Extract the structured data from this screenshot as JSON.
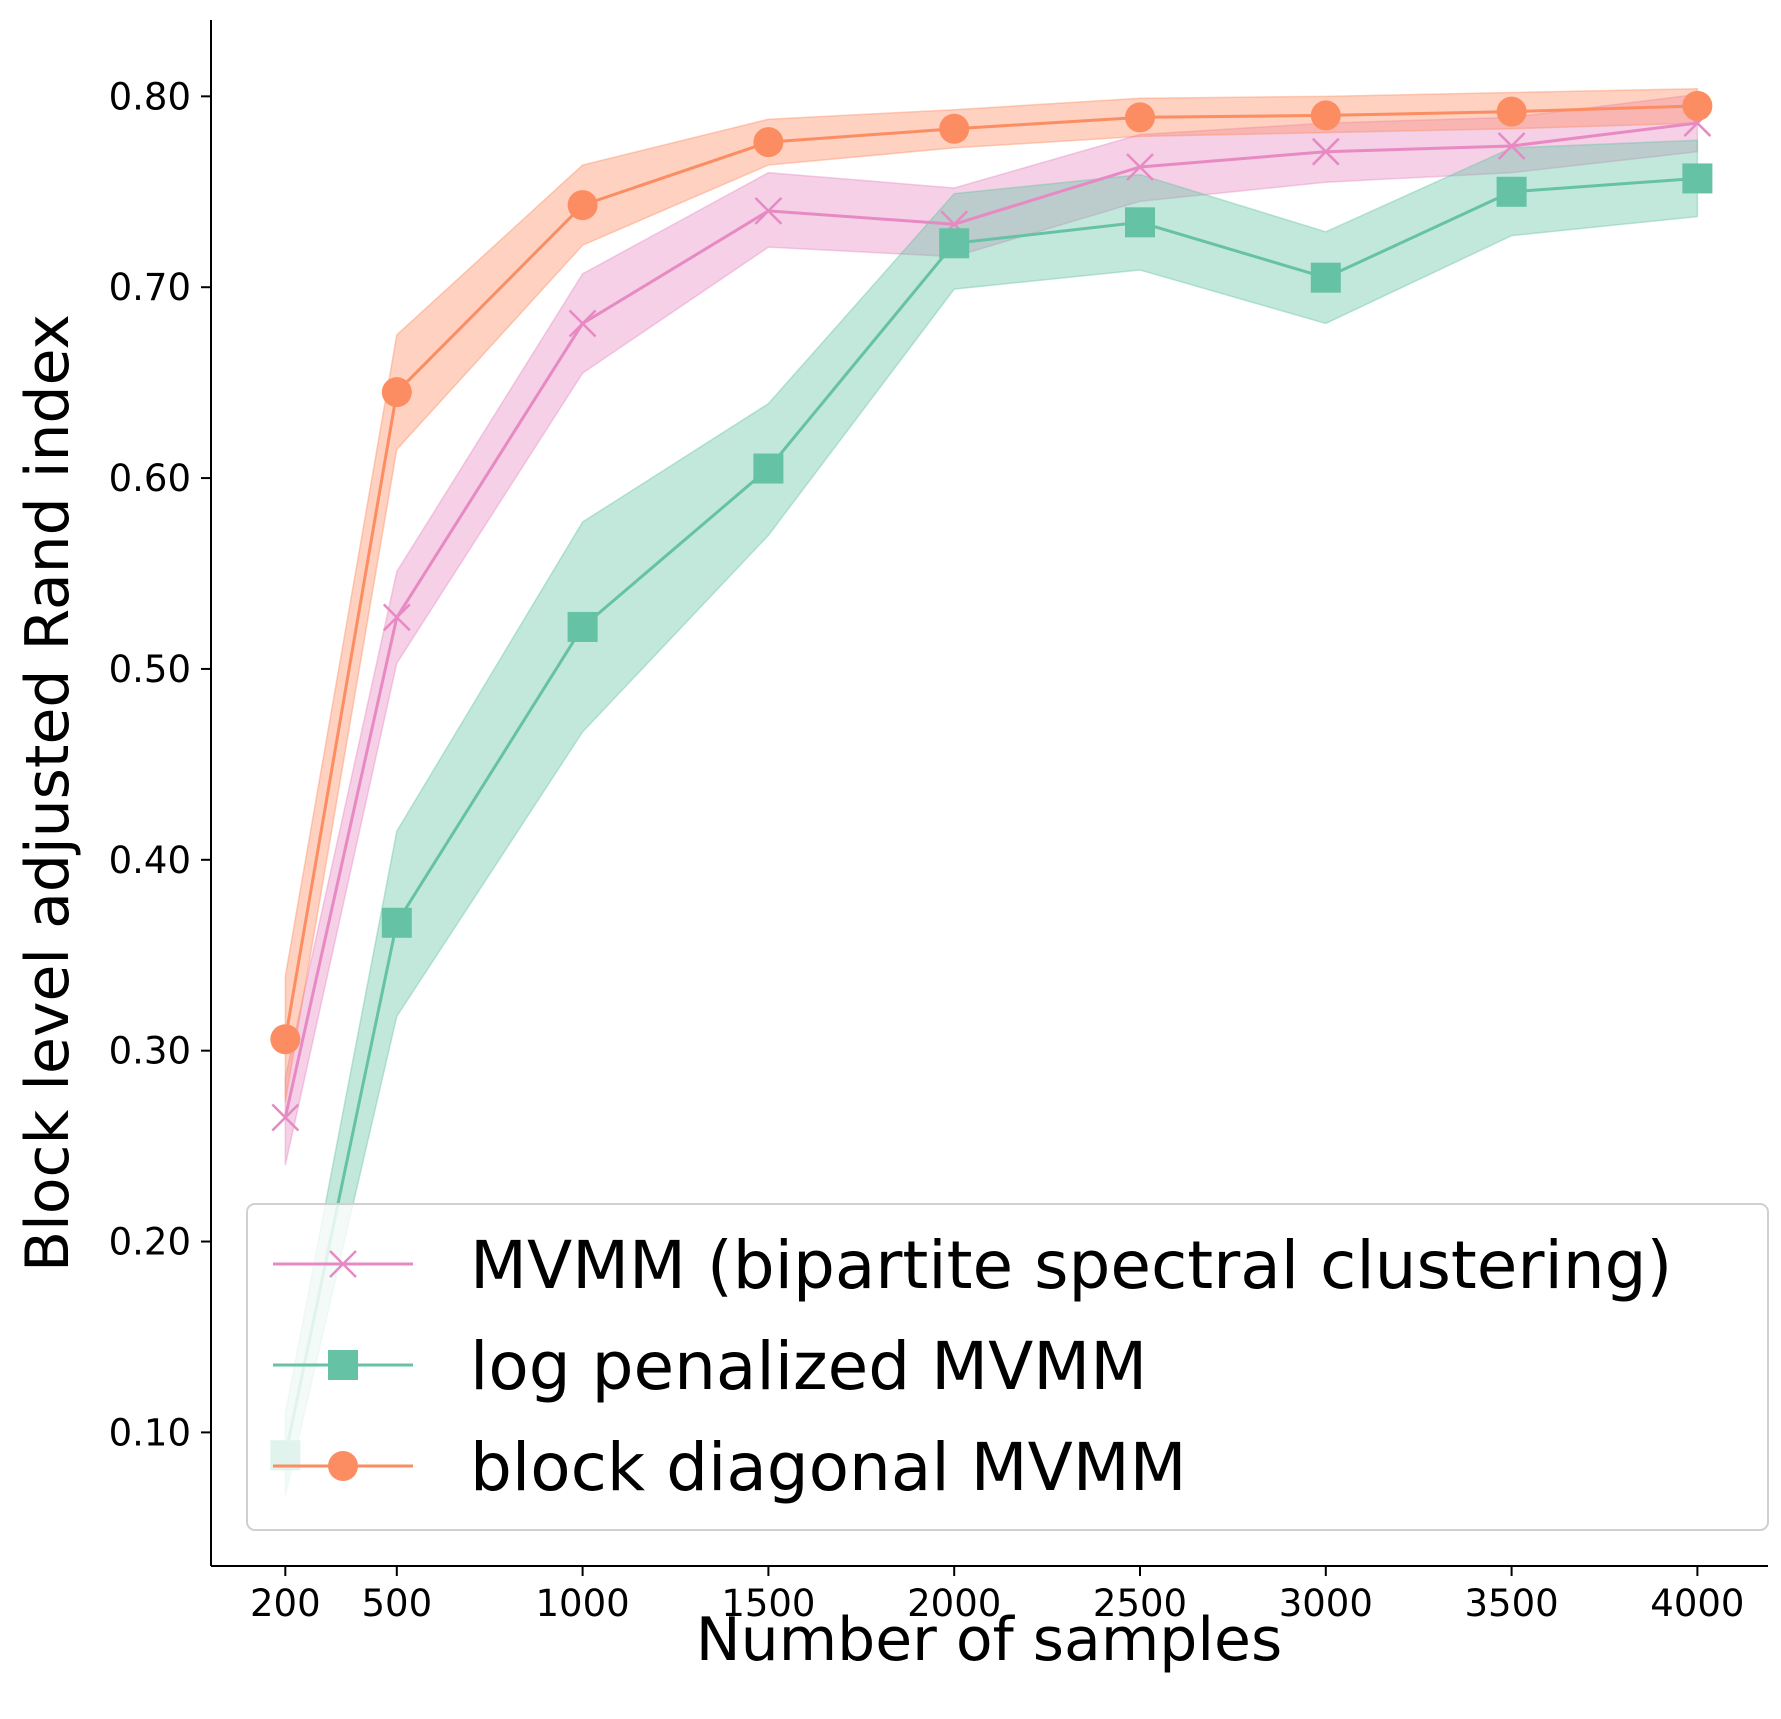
{
  "chart_data": {
    "type": "line",
    "title": "",
    "xlabel": "Number of samples",
    "ylabel": "Block level adjusted Rand index",
    "x": [
      200,
      500,
      1000,
      1500,
      2000,
      2500,
      3000,
      3500,
      4000
    ],
    "xticks": [
      200,
      500,
      1000,
      1500,
      2000,
      2500,
      3000,
      3500,
      4000
    ],
    "xtick_labels": [
      "200",
      "500",
      "1000",
      "1500",
      "2000",
      "2500",
      "3000",
      "3500",
      "4000"
    ],
    "yticks": [
      0.1,
      0.2,
      0.3,
      0.4,
      0.5,
      0.6,
      0.7,
      0.8
    ],
    "ytick_labels": [
      "0.10",
      "0.20",
      "0.30",
      "0.40",
      "0.50",
      "0.60",
      "0.70",
      "0.80"
    ],
    "xlim": [
      0,
      4190
    ],
    "ylim": [
      0.03,
      0.84
    ],
    "grid": false,
    "legend_position": "lower-right",
    "series": [
      {
        "name": "MVMM (bipartite spectral clustering)",
        "color": "#e78ac3",
        "marker": "x",
        "values": [
          0.265,
          0.527,
          0.681,
          0.74,
          0.733,
          0.763,
          0.771,
          0.774,
          0.786
        ],
        "lower": [
          0.24,
          0.503,
          0.655,
          0.721,
          0.716,
          0.745,
          0.755,
          0.76,
          0.771
        ],
        "upper": [
          0.286,
          0.551,
          0.707,
          0.76,
          0.752,
          0.78,
          0.786,
          0.789,
          0.801
        ]
      },
      {
        "name": "log penalized MVMM",
        "color": "#66c2a5",
        "marker": "square",
        "values": [
          0.088,
          0.367,
          0.522,
          0.605,
          0.723,
          0.734,
          0.705,
          0.75,
          0.757
        ],
        "lower": [
          0.067,
          0.318,
          0.467,
          0.57,
          0.699,
          0.709,
          0.681,
          0.727,
          0.737
        ],
        "upper": [
          0.11,
          0.415,
          0.577,
          0.639,
          0.749,
          0.759,
          0.729,
          0.773,
          0.777
        ]
      },
      {
        "name": "block diagonal MVMM",
        "color": "#fc8d62",
        "marker": "circle",
        "values": [
          0.306,
          0.645,
          0.743,
          0.776,
          0.783,
          0.789,
          0.79,
          0.792,
          0.795
        ],
        "lower": [
          0.273,
          0.615,
          0.722,
          0.764,
          0.773,
          0.779,
          0.781,
          0.783,
          0.786
        ],
        "upper": [
          0.339,
          0.675,
          0.764,
          0.788,
          0.793,
          0.799,
          0.8,
          0.802,
          0.804
        ]
      }
    ]
  }
}
